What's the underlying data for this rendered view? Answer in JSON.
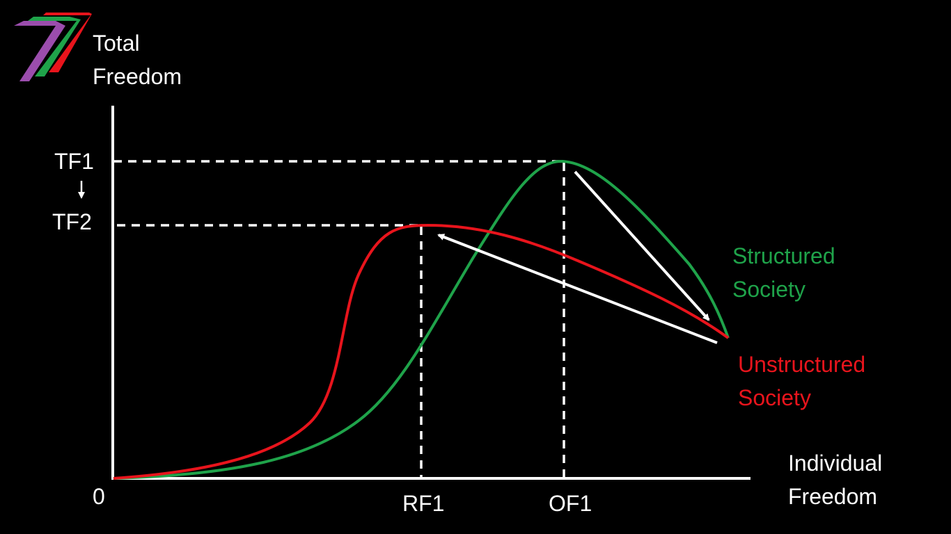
{
  "colors": {
    "background": "#000000",
    "axis": "#ffffff",
    "structured": "#1fa34a",
    "unstructured": "#e8141c",
    "logo": [
      "#9b4dad",
      "#1fa34a",
      "#e8141c"
    ]
  },
  "labels": {
    "y_axis_line1": "Total",
    "y_axis_line2": "Freedom",
    "x_axis_line1": "Individual",
    "x_axis_line2": "Freedom",
    "origin": "0",
    "tf1": "TF1",
    "tf2": "TF2",
    "rf1": "RF1",
    "of1": "OF1",
    "structured_line1": "Structured",
    "structured_line2": "Society",
    "unstructured_line1": "Unstructured",
    "unstructured_line2": "Society"
  },
  "icons": {
    "logo": "seven-stripes-logo",
    "tf_arrow": "down-arrow-icon"
  },
  "curves": {
    "structured_society": "green curve peaking at TF1 above OF1",
    "unstructured_society": "red curve peaking at TF2 above RF1"
  }
}
